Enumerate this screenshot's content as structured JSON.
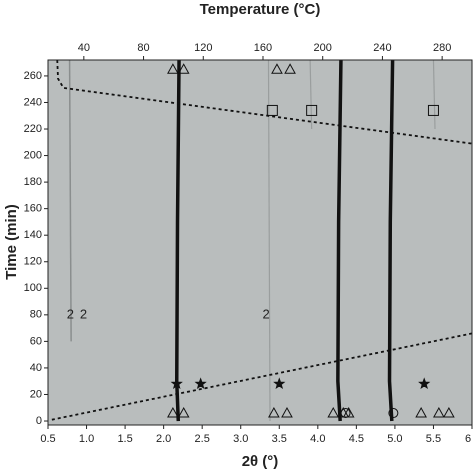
{
  "chart_data": {
    "type": "line",
    "title": "Temperature (°C)",
    "xlabel": "2θ (°)",
    "ylabel": "Time (min)",
    "xlim": [
      0.5,
      6.0
    ],
    "xticks": [
      0.5,
      {
        "value": 1.0,
        "label": "1.0"
      },
      1.5,
      {
        "value": 2.0,
        "label": "2.0"
      },
      2.5,
      {
        "value": 3.0,
        "label": "3.0"
      },
      3.5,
      {
        "value": 4.0,
        "label": "4.0"
      },
      4.5,
      {
        "value": 5.0,
        "label": "5.0"
      },
      5.5,
      6
    ],
    "x2lim": [
      16,
      300
    ],
    "x2ticks": [
      40,
      80,
      120,
      160,
      200,
      240,
      280
    ],
    "ylim": [
      -3,
      272
    ],
    "yticks": [
      0,
      20,
      40,
      60,
      80,
      100,
      120,
      140,
      160,
      180,
      200,
      220,
      240,
      260
    ],
    "background": "#b9bdbd",
    "series": [
      {
        "color": "#8a8e8e",
        "width": 1.5,
        "dash": false,
        "x": [
          0.78,
          0.8
        ],
        "y": [
          272,
          60
        ]
      },
      {
        "color": "#9a9e9e",
        "width": 1.2,
        "dash": false,
        "x": [
          3.36,
          3.38
        ],
        "y": [
          272,
          0
        ]
      },
      {
        "color": "#9a9e9e",
        "width": 1.2,
        "dash": false,
        "x": [
          3.9,
          3.92
        ],
        "y": [
          272,
          220
        ]
      },
      {
        "color": "#9a9e9e",
        "width": 1.2,
        "dash": false,
        "x": [
          5.5,
          5.52
        ],
        "y": [
          272,
          220
        ]
      },
      {
        "color": "#111111",
        "width": 3.5,
        "dash": false,
        "x": [
          2.2,
          2.18,
          2.17,
          2.19
        ],
        "y": [
          272,
          150,
          30,
          0
        ]
      },
      {
        "color": "#111111",
        "width": 3.5,
        "dash": false,
        "x": [
          4.3,
          4.27,
          4.26,
          4.29
        ],
        "y": [
          272,
          150,
          30,
          0
        ]
      },
      {
        "color": "#111111",
        "width": 3.5,
        "dash": false,
        "x": [
          4.97,
          4.94,
          4.93,
          4.96
        ],
        "y": [
          272,
          150,
          30,
          0
        ]
      },
      {
        "color": "#111111",
        "width": 1.8,
        "dash": true,
        "x": [
          0.62,
          0.63,
          0.7,
          6.0
        ],
        "y": [
          272,
          258,
          251,
          209
        ]
      },
      {
        "color": "#111111",
        "width": 1.8,
        "dash": true,
        "x": [
          0.55,
          6.0
        ],
        "y": [
          1,
          66
        ]
      }
    ],
    "markers": [
      {
        "symbol": "triangle",
        "x": [
          2.12,
          2.26,
          3.47,
          3.64
        ],
        "y": [
          265,
          265,
          265,
          265
        ]
      },
      {
        "symbol": "square",
        "x": [
          3.41,
          3.92,
          5.5
        ],
        "y": [
          234,
          234,
          234
        ]
      },
      {
        "symbol": "star",
        "x": [
          2.17,
          2.48,
          3.5,
          5.38
        ],
        "y": [
          28,
          28,
          28,
          28
        ]
      },
      {
        "symbol": "triangle",
        "x": [
          2.12,
          2.26,
          3.43,
          3.6,
          4.2,
          4.33,
          4.4,
          5.34,
          5.57,
          5.7
        ],
        "y": [
          6,
          6,
          6,
          6,
          6,
          6,
          6,
          6,
          6,
          6
        ]
      },
      {
        "symbol": "circle",
        "x": [
          4.36,
          4.98
        ],
        "y": [
          6,
          6
        ]
      }
    ],
    "annotations": [
      {
        "text": "2",
        "x": 0.79,
        "y": 80
      },
      {
        "text": "2",
        "x": 0.96,
        "y": 80
      },
      {
        "text": "2",
        "x": 3.33,
        "y": 80
      }
    ]
  }
}
